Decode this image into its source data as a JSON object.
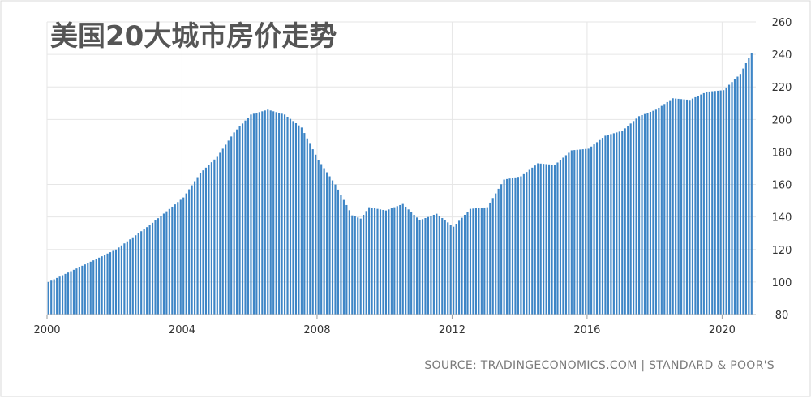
{
  "chart_data": {
    "type": "bar",
    "title": "美国20大城市房价走势",
    "source": "SOURCE: TRADINGECONOMICS.COM | STANDARD & POOR'S",
    "xlabel": "",
    "ylabel": "",
    "x_ticks": [
      "2000",
      "2004",
      "2008",
      "2012",
      "2016",
      "2020"
    ],
    "y_ticks": [
      "80",
      "100",
      "120",
      "140",
      "160",
      "180",
      "200",
      "220",
      "240",
      "260"
    ],
    "ylim": [
      80,
      260
    ],
    "xlim": [
      2000.0,
      2021.0
    ],
    "grid": true,
    "bar_color": "#3d85c6",
    "frequency": "monthly",
    "x": [
      2000.0,
      2001.0,
      2002.0,
      2003.0,
      2004.0,
      2004.5,
      2005.0,
      2005.5,
      2006.0,
      2006.5,
      2007.0,
      2007.5,
      2008.0,
      2008.5,
      2009.0,
      2009.25,
      2009.5,
      2010.0,
      2010.5,
      2011.0,
      2011.5,
      2012.0,
      2012.5,
      2013.0,
      2013.5,
      2014.0,
      2014.5,
      2015.0,
      2015.5,
      2016.0,
      2016.5,
      2017.0,
      2017.5,
      2018.0,
      2018.5,
      2019.0,
      2019.5,
      2020.0,
      2020.5,
      2020.83
    ],
    "values": [
      100,
      110,
      120,
      135,
      152,
      167,
      177,
      192,
      203,
      206,
      203,
      195,
      175,
      160,
      141,
      139,
      146,
      144,
      148,
      138,
      142,
      134,
      145,
      146,
      163,
      165,
      173,
      172,
      181,
      182,
      190,
      193,
      202,
      206,
      213,
      212,
      217,
      218,
      228,
      241
    ]
  }
}
